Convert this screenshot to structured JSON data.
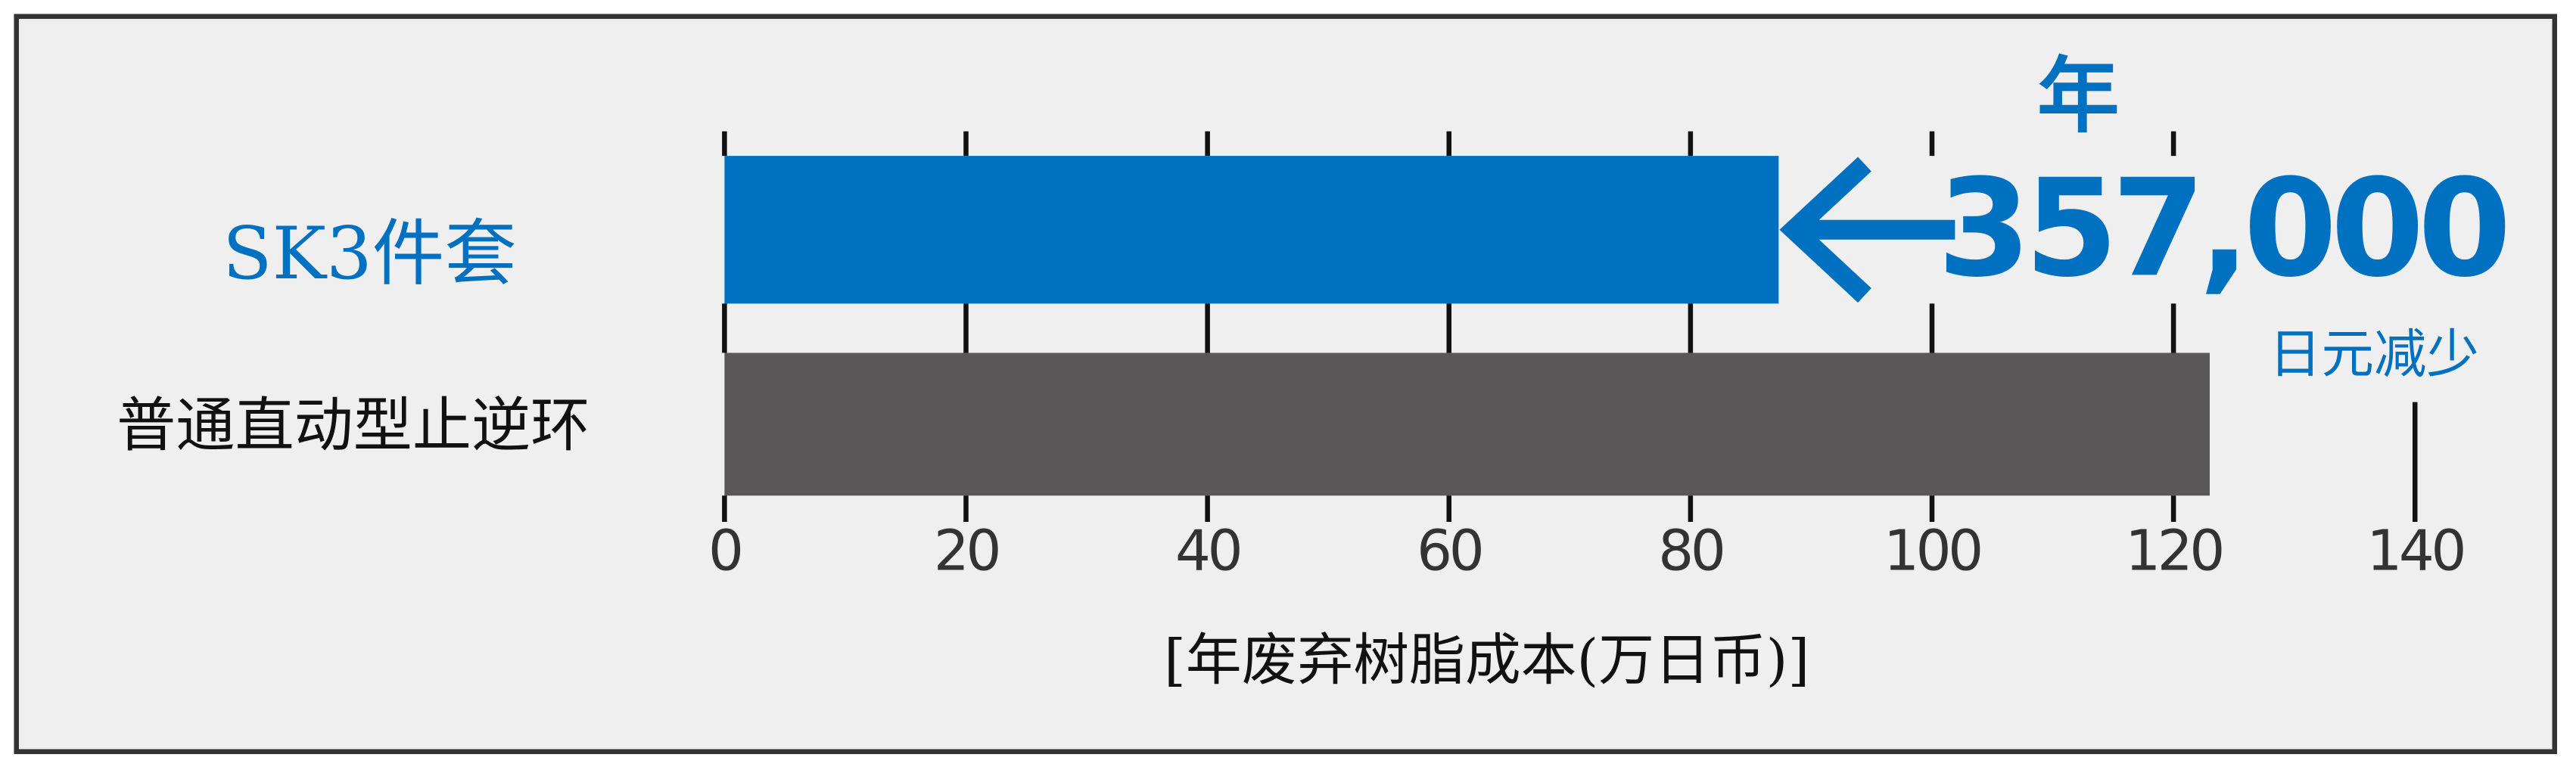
{
  "chart_data": {
    "type": "hbar",
    "categories": [
      "SK3件套",
      "普通直动型止逆环"
    ],
    "values": [
      87.3,
      123.0
    ],
    "colors": [
      "#0070c0",
      "#595757"
    ],
    "xlim": [
      0,
      140
    ],
    "xticks": [
      0,
      20,
      40,
      60,
      80,
      100,
      120,
      140
    ],
    "xlabel": "[年废弃树脂成本(万日币)]",
    "annotations": [
      "年",
      "357,000",
      "日元减少"
    ]
  }
}
